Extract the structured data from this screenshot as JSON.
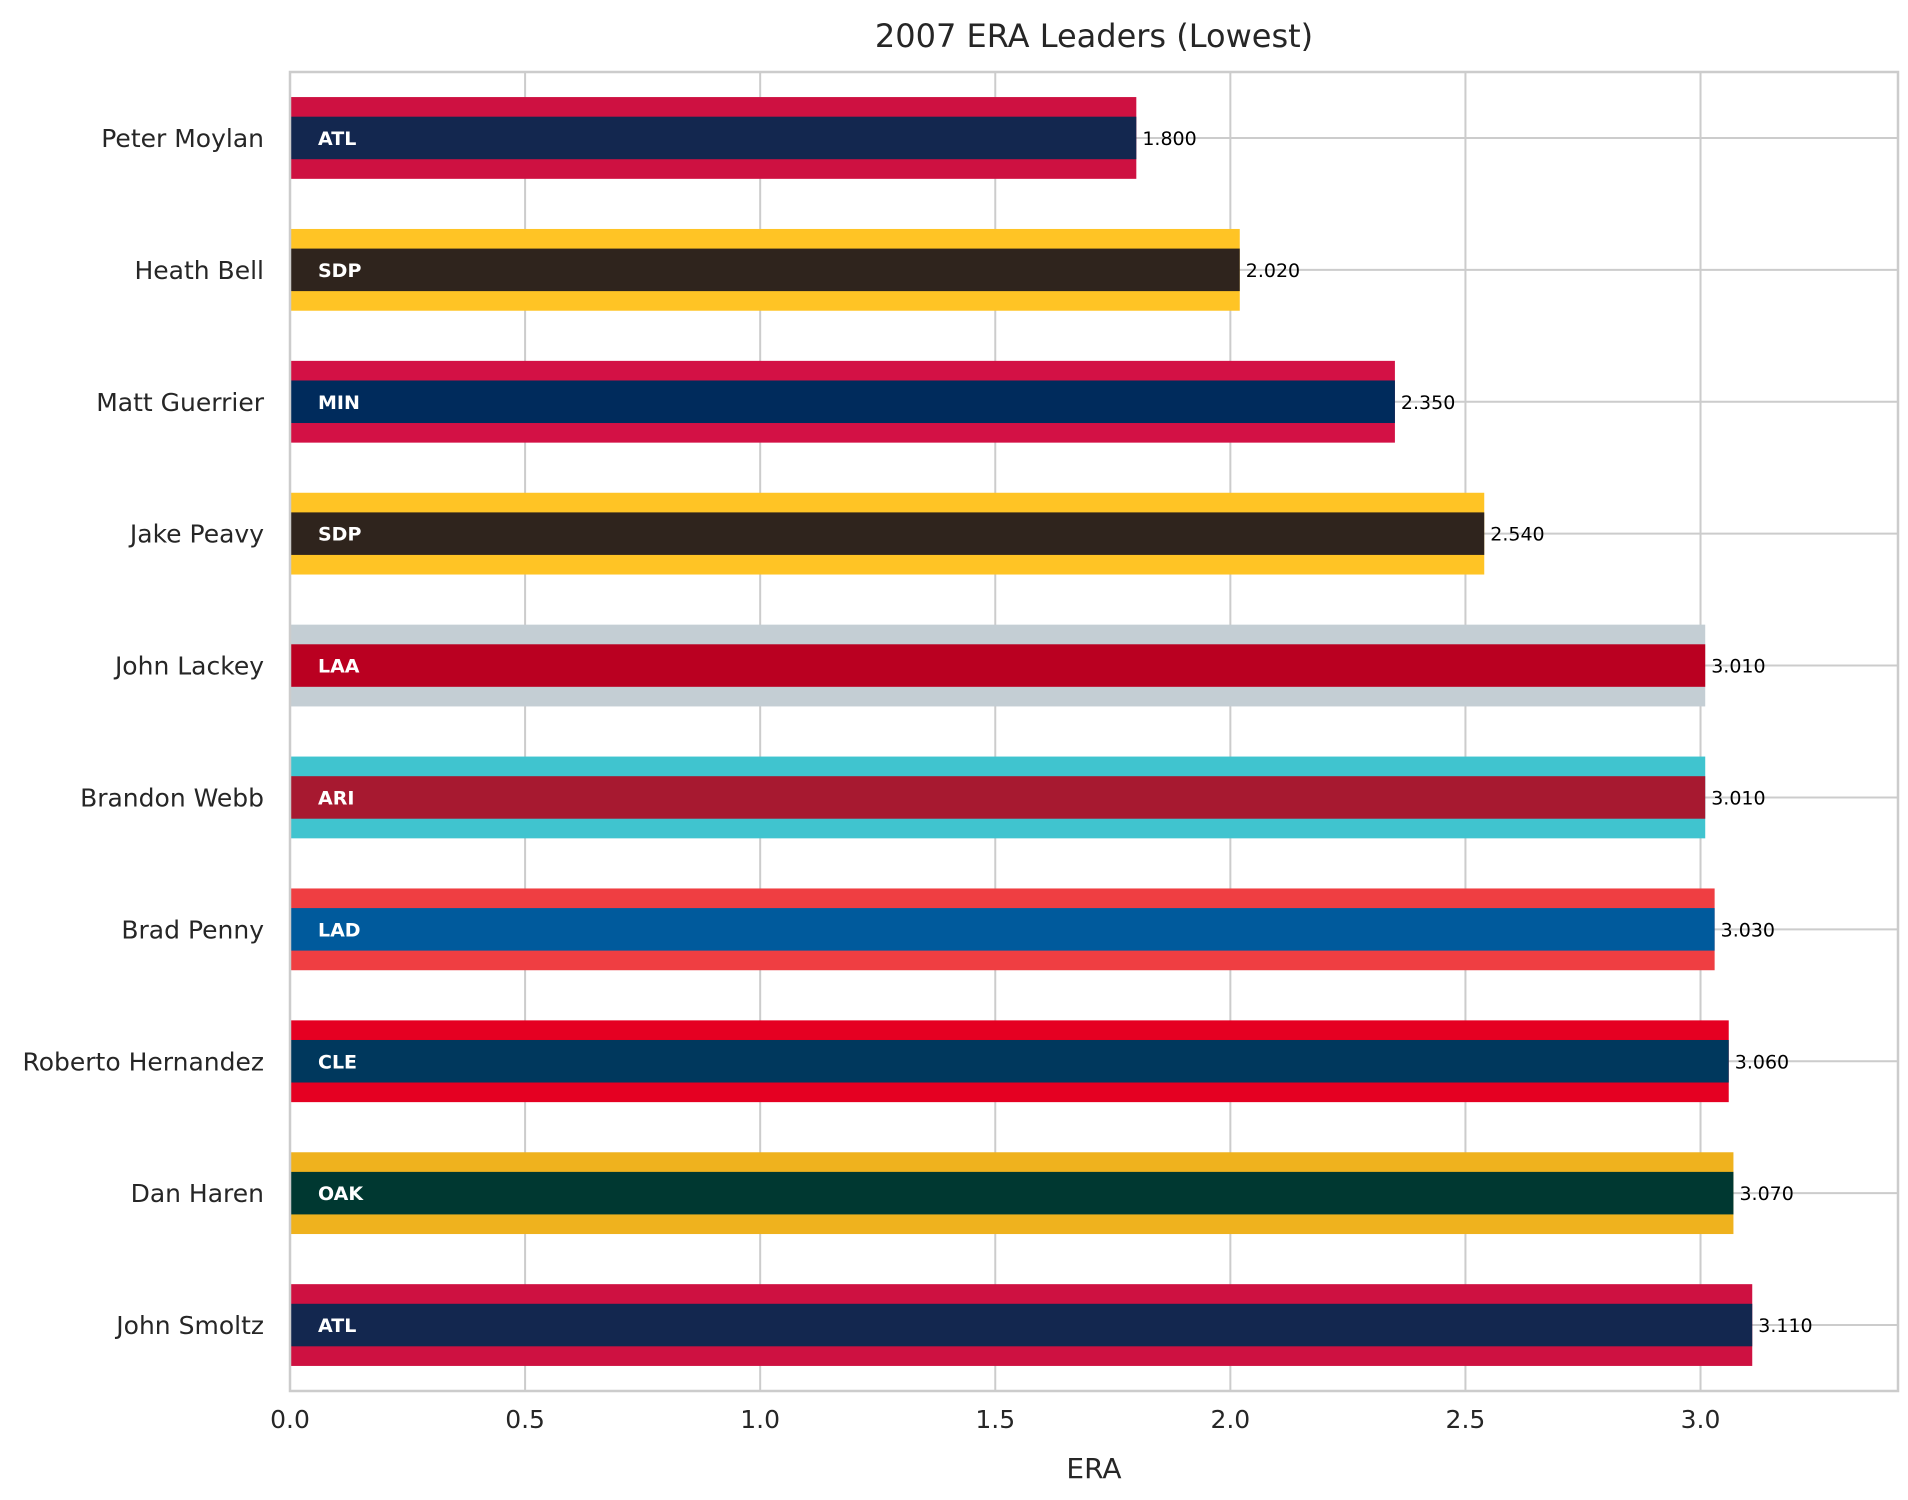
{
  "chart_data": {
    "type": "bar",
    "orientation": "horizontal",
    "title": "2007 ERA Leaders (Lowest)",
    "xlabel": "ERA",
    "ylabel": "",
    "xlim": [
      0,
      3.42
    ],
    "xticks": [
      0.0,
      0.5,
      1.0,
      1.5,
      2.0,
      2.5,
      3.0
    ],
    "xtick_labels": [
      "0.0",
      "0.5",
      "1.0",
      "1.5",
      "2.0",
      "2.5",
      "3.0"
    ],
    "grid": true,
    "legend": "none",
    "bars": [
      {
        "player": "Peter Moylan",
        "team": "ATL",
        "value": 1.8,
        "value_label": "1.800",
        "outer_color": "#CE1141",
        "inner_color": "#13274F"
      },
      {
        "player": "Heath Bell",
        "team": "SDP",
        "value": 2.02,
        "value_label": "2.020",
        "outer_color": "#FFC425",
        "inner_color": "#2F241D"
      },
      {
        "player": "Matt Guerrier",
        "team": "MIN",
        "value": 2.35,
        "value_label": "2.350",
        "outer_color": "#D31145",
        "inner_color": "#002B5C"
      },
      {
        "player": "Jake Peavy",
        "team": "SDP",
        "value": 2.54,
        "value_label": "2.540",
        "outer_color": "#FFC425",
        "inner_color": "#2F241D"
      },
      {
        "player": "John Lackey",
        "team": "LAA",
        "value": 3.01,
        "value_label": "3.010",
        "outer_color": "#C4CED4",
        "inner_color": "#BA0021"
      },
      {
        "player": "Brandon Webb",
        "team": "ARI",
        "value": 3.01,
        "value_label": "3.010",
        "outer_color": "#40C4CF",
        "inner_color": "#A71930"
      },
      {
        "player": "Brad Penny",
        "team": "LAD",
        "value": 3.03,
        "value_label": "3.030",
        "outer_color": "#EF3E42",
        "inner_color": "#005A9C"
      },
      {
        "player": "Roberto Hernandez",
        "team": "CLE",
        "value": 3.06,
        "value_label": "3.060",
        "outer_color": "#E50022",
        "inner_color": "#00385D"
      },
      {
        "player": "Dan Haren",
        "team": "OAK",
        "value": 3.07,
        "value_label": "3.070",
        "outer_color": "#EFB21E",
        "inner_color": "#003831"
      },
      {
        "player": "John Smoltz",
        "team": "ATL",
        "value": 3.11,
        "value_label": "3.110",
        "outer_color": "#CE1141",
        "inner_color": "#13274F"
      }
    ]
  }
}
